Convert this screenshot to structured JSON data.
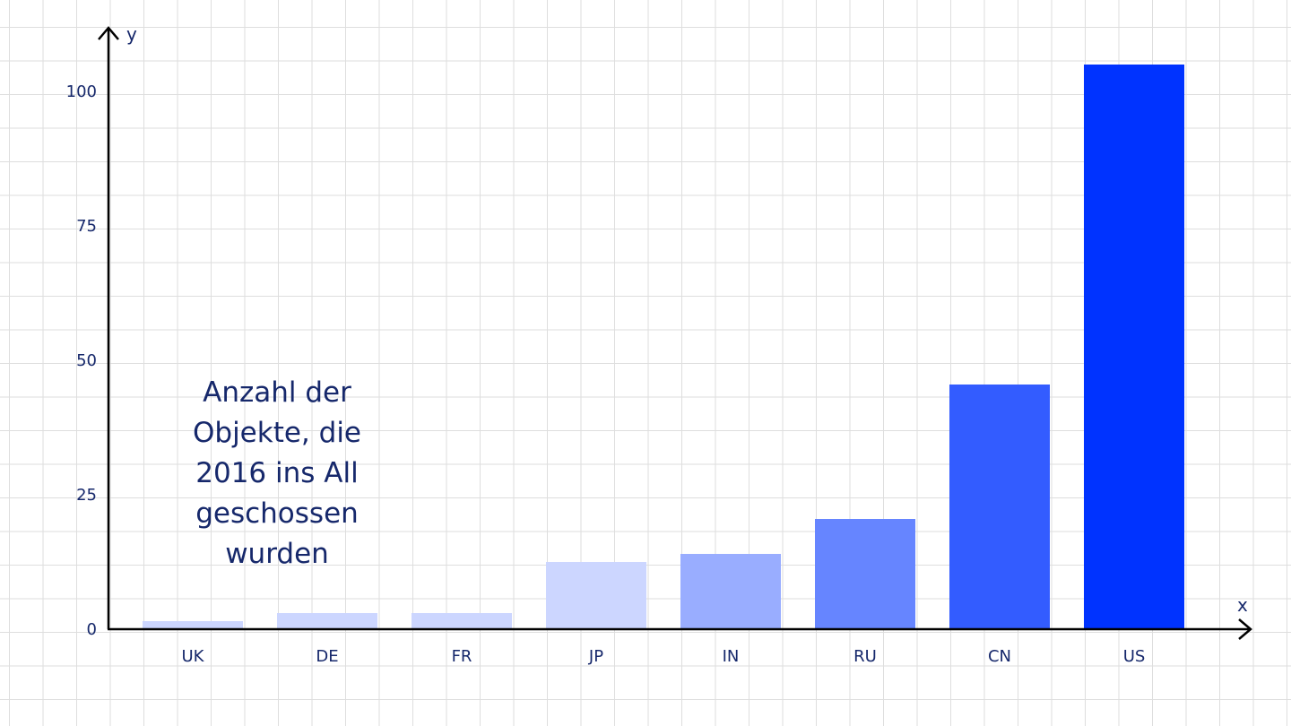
{
  "chart_data": {
    "type": "bar",
    "categories": [
      "UK",
      "DE",
      "FR",
      "JP",
      "IN",
      "RU",
      "CN",
      "US"
    ],
    "values": [
      1.5,
      3,
      3,
      12.5,
      14,
      20.5,
      45.5,
      105
    ],
    "bar_colors": [
      "#ccd6ff",
      "#ccd6ff",
      "#ccd6ff",
      "#ccd6ff",
      "#99adff",
      "#6685ff",
      "#335cff",
      "#0033ff"
    ],
    "xlabel": "x",
    "ylabel": "y",
    "ylim": [
      0,
      115
    ],
    "yticks": [
      0,
      25,
      50,
      75,
      100
    ],
    "annotation": "Anzahl der Objekte, die 2016 ins All geschossen wurden",
    "grid": true,
    "text_color": "#16286b",
    "axis_color": "#000000"
  }
}
